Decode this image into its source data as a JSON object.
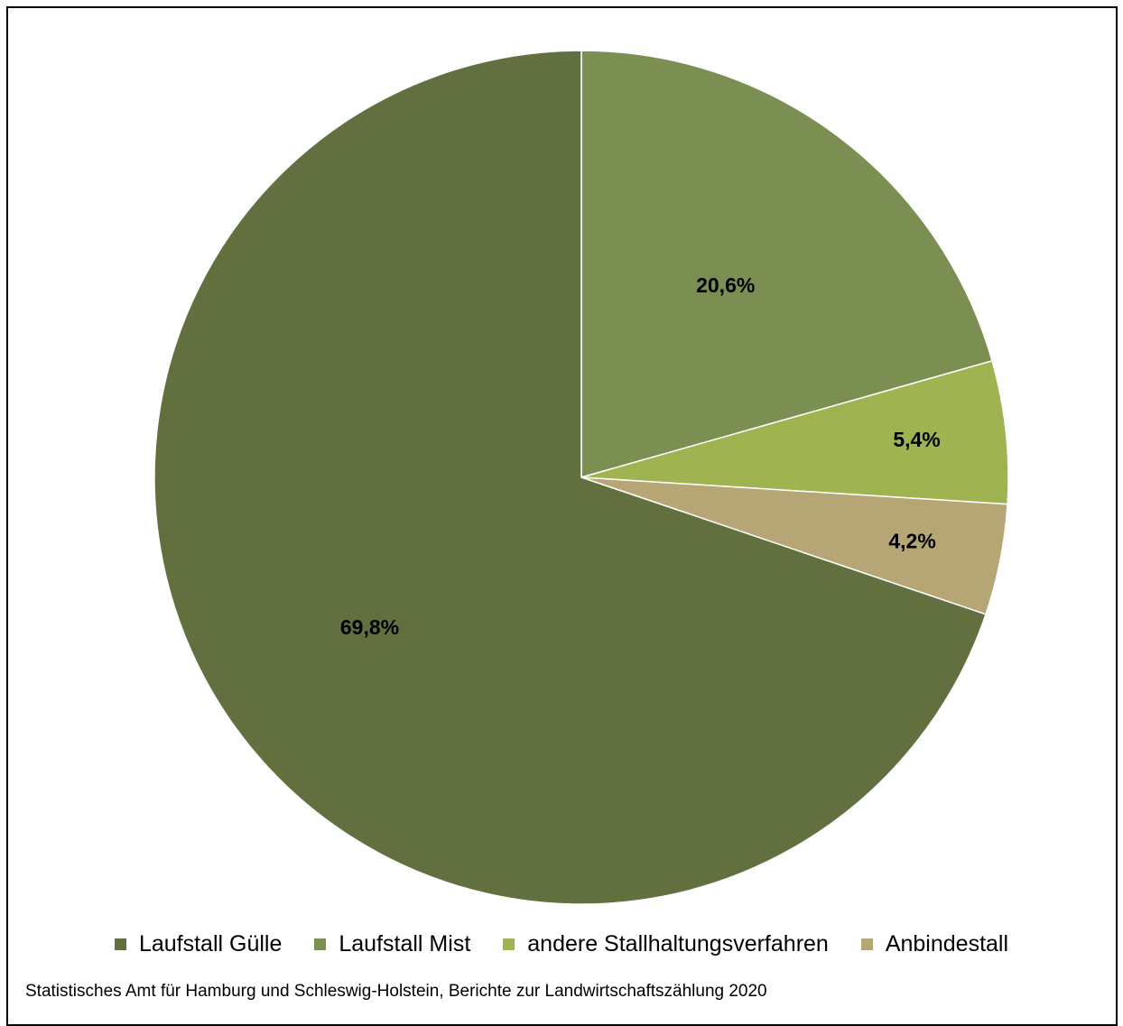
{
  "chart_data": {
    "type": "pie",
    "title": "",
    "start_angle_deg": 0,
    "direction": "clockwise",
    "slices": [
      {
        "label": "Laufstall Mist",
        "value": 20.6,
        "value_label": "20,6%",
        "color": "#7B8F52"
      },
      {
        "label": "andere Stallhaltungsverfahren",
        "value": 5.4,
        "value_label": "5,4%",
        "color": "#9FB350"
      },
      {
        "label": "Anbindestall",
        "value": 4.2,
        "value_label": "4,2%",
        "color": "#B6A676"
      },
      {
        "label": "Laufstall Gülle",
        "value": 69.8,
        "value_label": "69,8%",
        "color": "#62703F"
      }
    ],
    "legend": {
      "position": "bottom",
      "items": [
        {
          "label": "Laufstall Gülle",
          "color": "#62703F"
        },
        {
          "label": "Laufstall Mist",
          "color": "#7B8F52"
        },
        {
          "label": "andere Stallhaltungsverfahren",
          "color": "#9FB350"
        },
        {
          "label": "Anbindestall",
          "color": "#B6A676"
        }
      ]
    }
  },
  "source_note": "Statistisches Amt für Hamburg und Schleswig-Holstein,  Berichte zur Landwirtschaftszählung  2020"
}
